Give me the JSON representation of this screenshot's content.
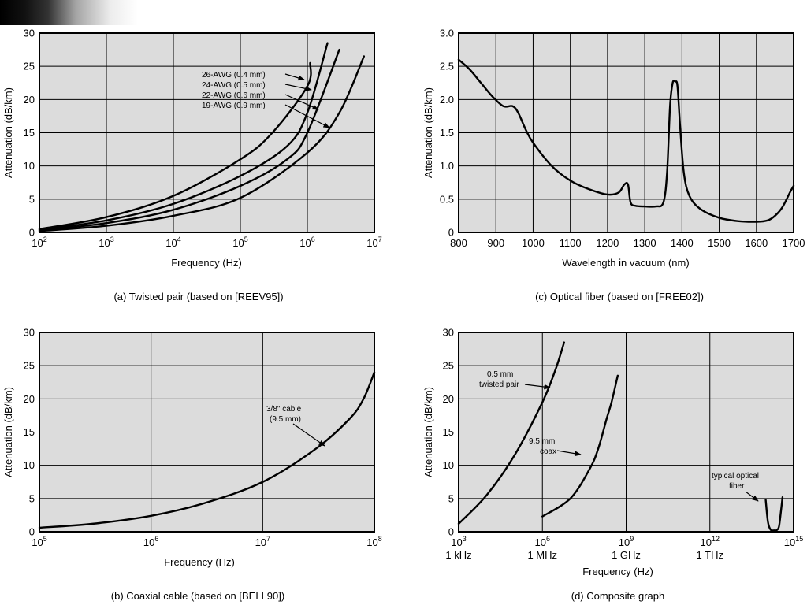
{
  "chart_data": [
    {
      "id": "a",
      "type": "line",
      "caption": "(a) Twisted pair (based on [REEV95])",
      "xlabel": "Frequency (Hz)",
      "ylabel": "Attenuation (dB/km)",
      "x_scale": "log",
      "xlim": [
        100,
        10000000
      ],
      "ylim": [
        0,
        30
      ],
      "xticks": [
        100,
        1000,
        10000,
        100000,
        1000000,
        10000000
      ],
      "xtick_labels": [
        [
          "10",
          "2"
        ],
        [
          "10",
          "3"
        ],
        [
          "10",
          "4"
        ],
        [
          "10",
          "5"
        ],
        [
          "10",
          "6"
        ],
        [
          "10",
          "7"
        ]
      ],
      "yticks": [
        0,
        5,
        10,
        15,
        20,
        25,
        30
      ],
      "ytick_labels": [
        "0",
        "5",
        "10",
        "15",
        "20",
        "25",
        "30"
      ],
      "grid": true,
      "series": [
        {
          "name": "26-AWG (0.4 mm)",
          "x": [
            100,
            1000,
            10000,
            100000,
            300000,
            1000000,
            1100000
          ],
          "y": [
            0.5,
            2.3,
            5.5,
            11,
            15,
            22,
            25.5
          ]
        },
        {
          "name": "24-AWG (0.5 mm)",
          "x": [
            100,
            1000,
            10000,
            100000,
            500000,
            1000000,
            2000000
          ],
          "y": [
            0.4,
            1.8,
            4.3,
            8.5,
            13,
            18,
            28.5
          ]
        },
        {
          "name": "22-AWG (0.6 mm)",
          "x": [
            100,
            1000,
            10000,
            100000,
            500000,
            1000000,
            3000000
          ],
          "y": [
            0.3,
            1.4,
            3.4,
            7,
            11,
            15,
            27.5
          ]
        },
        {
          "name": "19-AWG (0.9 mm)",
          "x": [
            100,
            1000,
            10000,
            100000,
            1000000,
            3000000,
            7000000
          ],
          "y": [
            0.2,
            1.0,
            2.5,
            5.2,
            12,
            18,
            26.5
          ]
        }
      ],
      "annotations": [
        "26-AWG (0.4 mm)",
        "24-AWG (0.5 mm)",
        "22-AWG (0.6 mm)",
        "19-AWG (0.9 mm)"
      ]
    },
    {
      "id": "c",
      "type": "line",
      "caption": "(c) Optical fiber (based on [FREE02])",
      "xlabel": "Wavelength in vacuum (nm)",
      "ylabel": "Attenuation (dB/km)",
      "x_scale": "linear",
      "xlim": [
        800,
        1700
      ],
      "ylim": [
        0,
        3.0
      ],
      "xticks": [
        800,
        900,
        1000,
        1100,
        1200,
        1300,
        1400,
        1500,
        1600,
        1700
      ],
      "xtick_labels": [
        "800",
        "900",
        "1000",
        "1100",
        "1200",
        "1300",
        "1400",
        "1500",
        "1600",
        "1700"
      ],
      "yticks": [
        0,
        0.5,
        1.0,
        1.5,
        2.0,
        2.5,
        3.0
      ],
      "ytick_labels": [
        "0",
        "0.5",
        "1.0",
        "1.5",
        "2.0",
        "2.5",
        "3.0"
      ],
      "grid": true,
      "series": [
        {
          "x": [
            800,
            830,
            860,
            890,
            920,
            945,
            960,
            980,
            1000,
            1050,
            1100,
            1150,
            1200,
            1230,
            1245,
            1255,
            1262,
            1275,
            1300,
            1330,
            1350,
            1360,
            1368,
            1375,
            1382,
            1388,
            1395,
            1405,
            1420,
            1450,
            1500,
            1550,
            1600,
            1630,
            1650,
            1670,
            1690,
            1700
          ],
          "y": [
            2.6,
            2.45,
            2.25,
            2.05,
            1.9,
            1.9,
            1.8,
            1.55,
            1.35,
            1.0,
            0.78,
            0.65,
            0.57,
            0.6,
            0.72,
            0.72,
            0.45,
            0.4,
            0.39,
            0.39,
            0.45,
            0.9,
            1.9,
            2.25,
            2.27,
            2.2,
            1.6,
            0.9,
            0.55,
            0.35,
            0.22,
            0.17,
            0.16,
            0.18,
            0.25,
            0.38,
            0.6,
            0.7
          ]
        }
      ]
    },
    {
      "id": "b",
      "type": "line",
      "caption": "(b) Coaxial cable (based on [BELL90])",
      "xlabel": "Frequency (Hz)",
      "ylabel": "Attenuation (dB/km)",
      "x_scale": "log",
      "xlim": [
        100000,
        100000000
      ],
      "ylim": [
        0,
        30
      ],
      "xticks": [
        100000,
        1000000,
        10000000,
        100000000
      ],
      "xtick_labels": [
        [
          "10",
          "5"
        ],
        [
          "10",
          "6"
        ],
        [
          "10",
          "7"
        ],
        [
          "10",
          "8"
        ]
      ],
      "yticks": [
        0,
        5,
        10,
        15,
        20,
        25,
        30
      ],
      "ytick_labels": [
        "0",
        "5",
        "10",
        "15",
        "20",
        "25",
        "30"
      ],
      "grid": true,
      "series": [
        {
          "name": "3/8\" cable (9.5 mm)",
          "x": [
            100000,
            300000,
            1000000,
            3000000,
            10000000,
            30000000,
            60000000,
            80000000,
            100000000
          ],
          "y": [
            0.6,
            1.2,
            2.4,
            4.3,
            7.5,
            12.5,
            17,
            20,
            24
          ]
        }
      ],
      "annotations": [
        "3/8\" cable",
        "(9.5 mm)"
      ]
    },
    {
      "id": "d",
      "type": "line",
      "caption": "(d) Composite graph",
      "xlabel": "Frequency (Hz)",
      "ylabel": "Attenuation (dB/km)",
      "x_scale": "log",
      "xlim": [
        1000,
        1000000000000000
      ],
      "ylim": [
        0,
        30
      ],
      "xticks": [
        1000,
        1000000,
        1000000000,
        1000000000000,
        1000000000000000
      ],
      "xtick_labels": [
        [
          "10",
          "3"
        ],
        [
          "10",
          "6"
        ],
        [
          "10",
          "9"
        ],
        [
          "10",
          "12"
        ],
        [
          "10",
          "15"
        ]
      ],
      "xtick_sublabels": [
        "1 kHz",
        "1 MHz",
        "1 GHz",
        "1 THz",
        ""
      ],
      "yticks": [
        0,
        5,
        10,
        15,
        20,
        25,
        30
      ],
      "ytick_labels": [
        "0",
        "5",
        "10",
        "15",
        "20",
        "25",
        "30"
      ],
      "grid": true,
      "series": [
        {
          "name": "0.5 mm twisted pair",
          "x": [
            1000,
            10000,
            100000,
            1000000,
            3000000,
            6000000
          ],
          "y": [
            1.2,
            5.5,
            11.5,
            19.5,
            24.5,
            28.5
          ]
        },
        {
          "name": "9.5 mm coax",
          "x": [
            1000000,
            10000000,
            50000000,
            100000000,
            200000000,
            300000000,
            500000000
          ],
          "y": [
            2.3,
            5,
            9.5,
            12.5,
            17,
            19.5,
            23.5
          ]
        },
        {
          "name": "typical optical fiber",
          "x": [
            100000000000000,
            120000000000000,
            150000000000000,
            200000000000000,
            250000000000000,
            300000000000000,
            350000000000000,
            400000000000000
          ],
          "y": [
            4.8,
            1.5,
            0.3,
            0.2,
            0.25,
            0.8,
            3,
            5.2
          ]
        }
      ],
      "annotations": [
        "0.5 mm",
        "twisted pair",
        "9.5 mm",
        "coax",
        "typical optical",
        "fiber"
      ]
    }
  ]
}
